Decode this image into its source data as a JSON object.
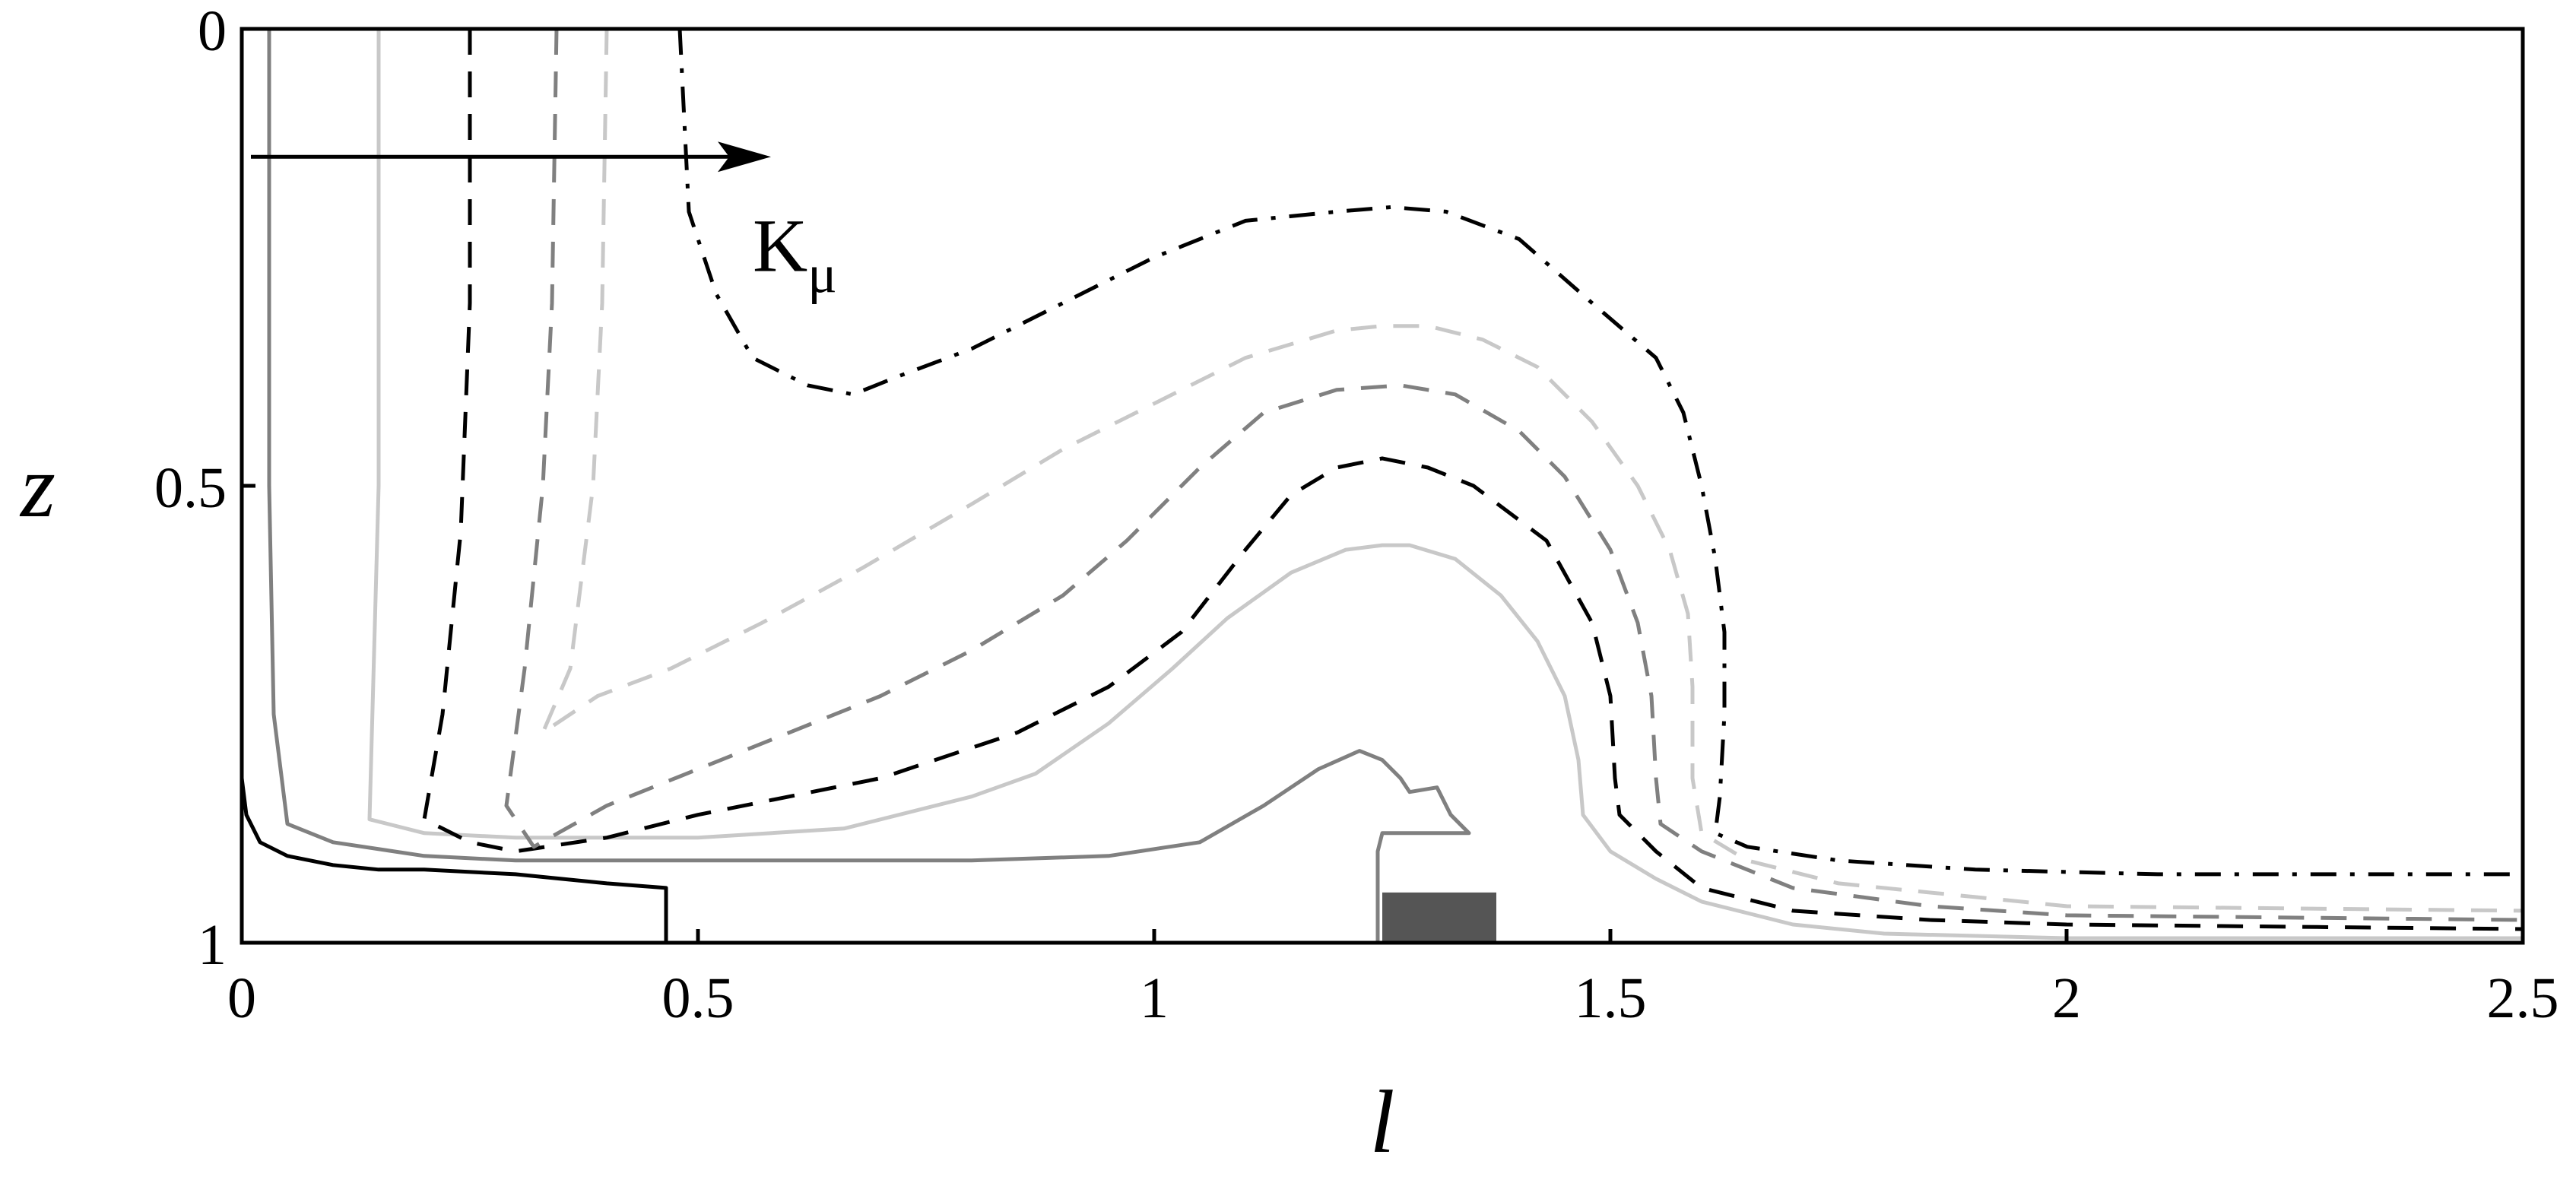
{
  "chart_data": {
    "type": "line",
    "xlabel": "l",
    "ylabel": "z",
    "xlim": [
      0,
      2.5
    ],
    "ylim": [
      0,
      1
    ],
    "y_inverted": true,
    "x_ticks": [
      {
        "value": 0,
        "label": "0"
      },
      {
        "value": 0.5,
        "label": "0.5"
      },
      {
        "value": 1,
        "label": "1"
      },
      {
        "value": 1.5,
        "label": "1.5"
      },
      {
        "value": 2,
        "label": "2"
      },
      {
        "value": 2.5,
        "label": "2.5"
      }
    ],
    "y_ticks": [
      {
        "value": 0,
        "label": "0"
      },
      {
        "value": 0.5,
        "label": "0.5"
      },
      {
        "value": 1,
        "label": "1"
      }
    ],
    "grid": false,
    "legend": "none",
    "annotation": {
      "text": "K",
      "subscript": "μ",
      "arrow_from": [
        0.01,
        0.14
      ],
      "arrow_to": [
        0.58,
        0.14
      ],
      "text_at": [
        0.56,
        0.265
      ]
    },
    "obstacle": {
      "x0": 1.25,
      "x1": 1.375,
      "z0": 0.945,
      "z1": 1.0,
      "color": "#555555"
    },
    "series": [
      {
        "color": "#000000",
        "dash": "solid",
        "points": [
          [
            0.0,
            0.82
          ],
          [
            0.005,
            0.86
          ],
          [
            0.02,
            0.89
          ],
          [
            0.05,
            0.905
          ],
          [
            0.1,
            0.915
          ],
          [
            0.15,
            0.92
          ],
          [
            0.2,
            0.92
          ],
          [
            0.3,
            0.925
          ],
          [
            0.35,
            0.93
          ],
          [
            0.4,
            0.935
          ],
          [
            0.465,
            0.94
          ],
          [
            0.465,
            1.0
          ]
        ]
      },
      {
        "color": "#808080",
        "dash": "solid",
        "points": [
          [
            0.03,
            0.0
          ],
          [
            0.03,
            0.2
          ],
          [
            0.03,
            0.5
          ],
          [
            0.035,
            0.75
          ],
          [
            0.05,
            0.87
          ],
          [
            0.1,
            0.89
          ],
          [
            0.2,
            0.905
          ],
          [
            0.3,
            0.91
          ],
          [
            0.4,
            0.91
          ],
          [
            0.6,
            0.91
          ],
          [
            0.8,
            0.91
          ],
          [
            0.95,
            0.905
          ],
          [
            1.05,
            0.89
          ],
          [
            1.12,
            0.85
          ],
          [
            1.18,
            0.81
          ],
          [
            1.225,
            0.79
          ],
          [
            1.25,
            0.8
          ],
          [
            1.27,
            0.82
          ],
          [
            1.28,
            0.835
          ],
          [
            1.31,
            0.83
          ],
          [
            1.325,
            0.86
          ],
          [
            1.345,
            0.88
          ],
          [
            1.25,
            0.88
          ],
          [
            1.245,
            0.9
          ],
          [
            1.245,
            1.0
          ]
        ]
      },
      {
        "color": "#c8c8c8",
        "dash": "solid",
        "points": [
          [
            0.15,
            0.0
          ],
          [
            0.15,
            0.5
          ],
          [
            0.14,
            0.865
          ],
          [
            0.2,
            0.88
          ],
          [
            0.3,
            0.885
          ],
          [
            0.5,
            0.885
          ],
          [
            0.66,
            0.875
          ],
          [
            0.8,
            0.84
          ],
          [
            0.87,
            0.815
          ],
          [
            0.95,
            0.76
          ],
          [
            1.02,
            0.7
          ],
          [
            1.08,
            0.645
          ],
          [
            1.15,
            0.595
          ],
          [
            1.21,
            0.57
          ],
          [
            1.25,
            0.565
          ],
          [
            1.28,
            0.565
          ],
          [
            1.33,
            0.58
          ],
          [
            1.38,
            0.62
          ],
          [
            1.42,
            0.67
          ],
          [
            1.45,
            0.73
          ],
          [
            1.465,
            0.8
          ],
          [
            1.47,
            0.86
          ],
          [
            1.5,
            0.9
          ],
          [
            1.55,
            0.93
          ],
          [
            1.6,
            0.955
          ],
          [
            1.7,
            0.98
          ],
          [
            1.8,
            0.99
          ],
          [
            2.0,
            0.995
          ],
          [
            2.5,
            0.995
          ]
        ]
      },
      {
        "color": "#000000",
        "dash": "dashed",
        "points": [
          [
            0.25,
            0.0
          ],
          [
            0.25,
            0.3
          ],
          [
            0.24,
            0.55
          ],
          [
            0.22,
            0.75
          ],
          [
            0.2,
            0.865
          ],
          [
            0.25,
            0.89
          ],
          [
            0.3,
            0.9
          ],
          [
            0.4,
            0.885
          ],
          [
            0.5,
            0.86
          ],
          [
            0.7,
            0.82
          ],
          [
            0.85,
            0.77
          ],
          [
            0.95,
            0.72
          ],
          [
            1.03,
            0.66
          ],
          [
            1.1,
            0.57
          ],
          [
            1.15,
            0.51
          ],
          [
            1.2,
            0.48
          ],
          [
            1.25,
            0.47
          ],
          [
            1.3,
            0.48
          ],
          [
            1.35,
            0.5
          ],
          [
            1.43,
            0.56
          ],
          [
            1.48,
            0.65
          ],
          [
            1.5,
            0.73
          ],
          [
            1.505,
            0.82
          ],
          [
            1.51,
            0.86
          ],
          [
            1.55,
            0.9
          ],
          [
            1.6,
            0.94
          ],
          [
            1.7,
            0.965
          ],
          [
            1.85,
            0.975
          ],
          [
            2.0,
            0.98
          ],
          [
            2.5,
            0.985
          ]
        ]
      },
      {
        "color": "#808080",
        "dash": "dashed",
        "points": [
          [
            0.345,
            0.0
          ],
          [
            0.34,
            0.3
          ],
          [
            0.33,
            0.5
          ],
          [
            0.31,
            0.7
          ],
          [
            0.29,
            0.85
          ],
          [
            0.32,
            0.895
          ],
          [
            0.4,
            0.85
          ],
          [
            0.55,
            0.79
          ],
          [
            0.7,
            0.73
          ],
          [
            0.8,
            0.68
          ],
          [
            0.9,
            0.62
          ],
          [
            0.97,
            0.56
          ],
          [
            1.05,
            0.48
          ],
          [
            1.12,
            0.42
          ],
          [
            1.2,
            0.395
          ],
          [
            1.27,
            0.39
          ],
          [
            1.33,
            0.4
          ],
          [
            1.4,
            0.44
          ],
          [
            1.45,
            0.49
          ],
          [
            1.5,
            0.57
          ],
          [
            1.53,
            0.65
          ],
          [
            1.545,
            0.73
          ],
          [
            1.55,
            0.82
          ],
          [
            1.555,
            0.87
          ],
          [
            1.6,
            0.9
          ],
          [
            1.7,
            0.94
          ],
          [
            1.85,
            0.96
          ],
          [
            2.0,
            0.97
          ],
          [
            2.5,
            0.975
          ]
        ]
      },
      {
        "color": "#c8c8c8",
        "dash": "dashed",
        "points": [
          [
            0.4,
            0.0
          ],
          [
            0.395,
            0.3
          ],
          [
            0.385,
            0.5
          ],
          [
            0.36,
            0.7
          ],
          [
            0.33,
            0.77
          ],
          [
            0.39,
            0.73
          ],
          [
            0.47,
            0.7
          ],
          [
            0.57,
            0.65
          ],
          [
            0.68,
            0.59
          ],
          [
            0.8,
            0.52
          ],
          [
            0.9,
            0.46
          ],
          [
            1.0,
            0.41
          ],
          [
            1.1,
            0.36
          ],
          [
            1.2,
            0.33
          ],
          [
            1.25,
            0.325
          ],
          [
            1.3,
            0.325
          ],
          [
            1.36,
            0.34
          ],
          [
            1.42,
            0.37
          ],
          [
            1.48,
            0.43
          ],
          [
            1.53,
            0.5
          ],
          [
            1.565,
            0.57
          ],
          [
            1.585,
            0.64
          ],
          [
            1.59,
            0.72
          ],
          [
            1.59,
            0.82
          ],
          [
            1.6,
            0.88
          ],
          [
            1.65,
            0.91
          ],
          [
            1.75,
            0.935
          ],
          [
            1.9,
            0.95
          ],
          [
            2.0,
            0.96
          ],
          [
            2.5,
            0.965
          ]
        ]
      },
      {
        "color": "#000000",
        "dash": "dashdot",
        "points": [
          [
            0.48,
            0.0
          ],
          [
            0.485,
            0.1
          ],
          [
            0.49,
            0.2
          ],
          [
            0.52,
            0.29
          ],
          [
            0.56,
            0.36
          ],
          [
            0.62,
            0.39
          ],
          [
            0.67,
            0.4
          ],
          [
            0.72,
            0.38
          ],
          [
            0.8,
            0.35
          ],
          [
            0.9,
            0.3
          ],
          [
            1.0,
            0.25
          ],
          [
            1.1,
            0.21
          ],
          [
            1.2,
            0.2
          ],
          [
            1.26,
            0.195
          ],
          [
            1.32,
            0.2
          ],
          [
            1.4,
            0.23
          ],
          [
            1.48,
            0.3
          ],
          [
            1.55,
            0.36
          ],
          [
            1.58,
            0.42
          ],
          [
            1.6,
            0.5
          ],
          [
            1.615,
            0.58
          ],
          [
            1.625,
            0.66
          ],
          [
            1.625,
            0.75
          ],
          [
            1.62,
            0.84
          ],
          [
            1.615,
            0.88
          ],
          [
            1.65,
            0.895
          ],
          [
            1.75,
            0.91
          ],
          [
            1.9,
            0.92
          ],
          [
            2.1,
            0.925
          ],
          [
            2.5,
            0.925
          ]
        ]
      }
    ]
  }
}
